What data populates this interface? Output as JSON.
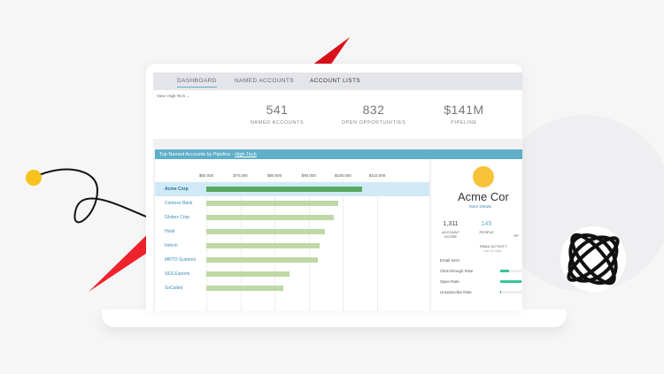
{
  "tabs": [
    {
      "label": "DASHBOARD",
      "active": true
    },
    {
      "label": "NAMED ACCOUNTS"
    },
    {
      "label": "ACCOUNT LISTS"
    }
  ],
  "view": {
    "label": "View:",
    "value": "High Tech"
  },
  "kpis": [
    {
      "value": "541",
      "label": "NAMED ACCOUNTS"
    },
    {
      "value": "832",
      "label": "OPEN OPPORTUNITIES"
    },
    {
      "value": "$141M",
      "label": "PIPELINE"
    }
  ],
  "panel": {
    "title": "Top Named Accounts by Pipeline - ",
    "link": "High Tech"
  },
  "chart_data": {
    "type": "bar",
    "orientation": "horizontal",
    "categories": [
      "Acme Corp",
      "Contoso Bank",
      "Globex Corp",
      "Hooli",
      "Initech",
      "MRTO Systems",
      "SES Exports",
      "SoCalled"
    ],
    "values": [
      105500,
      98500,
      97400,
      94800,
      93200,
      92700,
      84300,
      82500
    ],
    "ticks": [
      "$60,000",
      "$70,000",
      "$80,000",
      "$90,000",
      "$100,000",
      "$110,000"
    ],
    "xlim": [
      60000,
      110000
    ],
    "highlighted": "Acme Corp",
    "colors": {
      "bar": "#bfd8a6",
      "highlight": "#5aa864"
    }
  },
  "account": {
    "name": "Acme Cor",
    "more": "More Details",
    "score": "1,311",
    "score_label": "ACCOUNT SCORE",
    "people": "145",
    "people_label": "PEOPLE",
    "op_label": "OP",
    "email_title": "EMAIL ACTIVITY",
    "email_sub": "Last 30 Days",
    "metrics": [
      {
        "label": "Email Sent",
        "level": 0
      },
      {
        "label": "Click-through Rate",
        "level": 0.4
      },
      {
        "label": "Open Rate",
        "level": 0.95
      },
      {
        "label": "Unsubscribe Rate",
        "level": 0.05
      }
    ]
  }
}
